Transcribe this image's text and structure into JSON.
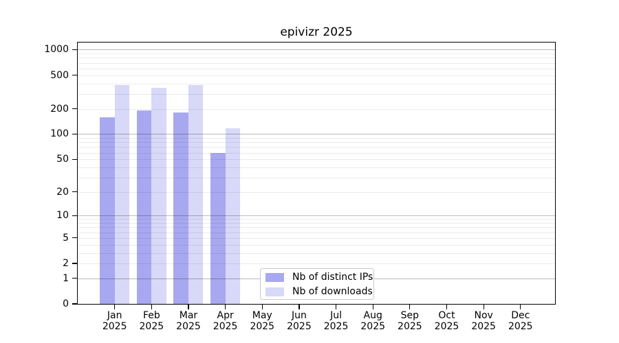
{
  "title": "epivizr 2025",
  "chart_data": {
    "type": "bar",
    "title": "epivizr 2025",
    "categories": [
      "Jan",
      "Feb",
      "Mar",
      "Apr",
      "May",
      "Jun",
      "Jul",
      "Aug",
      "Sep",
      "Oct",
      "Nov",
      "Dec"
    ],
    "year": "2025",
    "series": [
      {
        "name": "Nb of distinct IPs",
        "color": "#a8a8f0",
        "values": [
          158,
          192,
          182,
          60,
          0,
          0,
          0,
          0,
          0,
          0,
          0,
          0
        ]
      },
      {
        "name": "Nb of downloads",
        "color": "#d8d8f8",
        "values": [
          380,
          352,
          380,
          118,
          0,
          0,
          0,
          0,
          0,
          0,
          0,
          0
        ]
      }
    ],
    "y_ticks": [
      0,
      1,
      2,
      5,
      10,
      20,
      50,
      100,
      200,
      500,
      1000
    ],
    "y_scale": "log10(1+x)",
    "ylim": [
      0,
      1000
    ],
    "grid": "horizontal",
    "legend": {
      "position": "lower center",
      "entries": [
        "Nb of distinct IPs",
        "Nb of downloads"
      ]
    }
  },
  "colors": {
    "bar_distinct_ips": "#a8a8f0",
    "bar_downloads": "#d8d8f8",
    "grid_major": "rgba(0,0,0,0.27)",
    "grid_minor": "rgba(0,0,0,0.08)",
    "axis": "#000000"
  }
}
